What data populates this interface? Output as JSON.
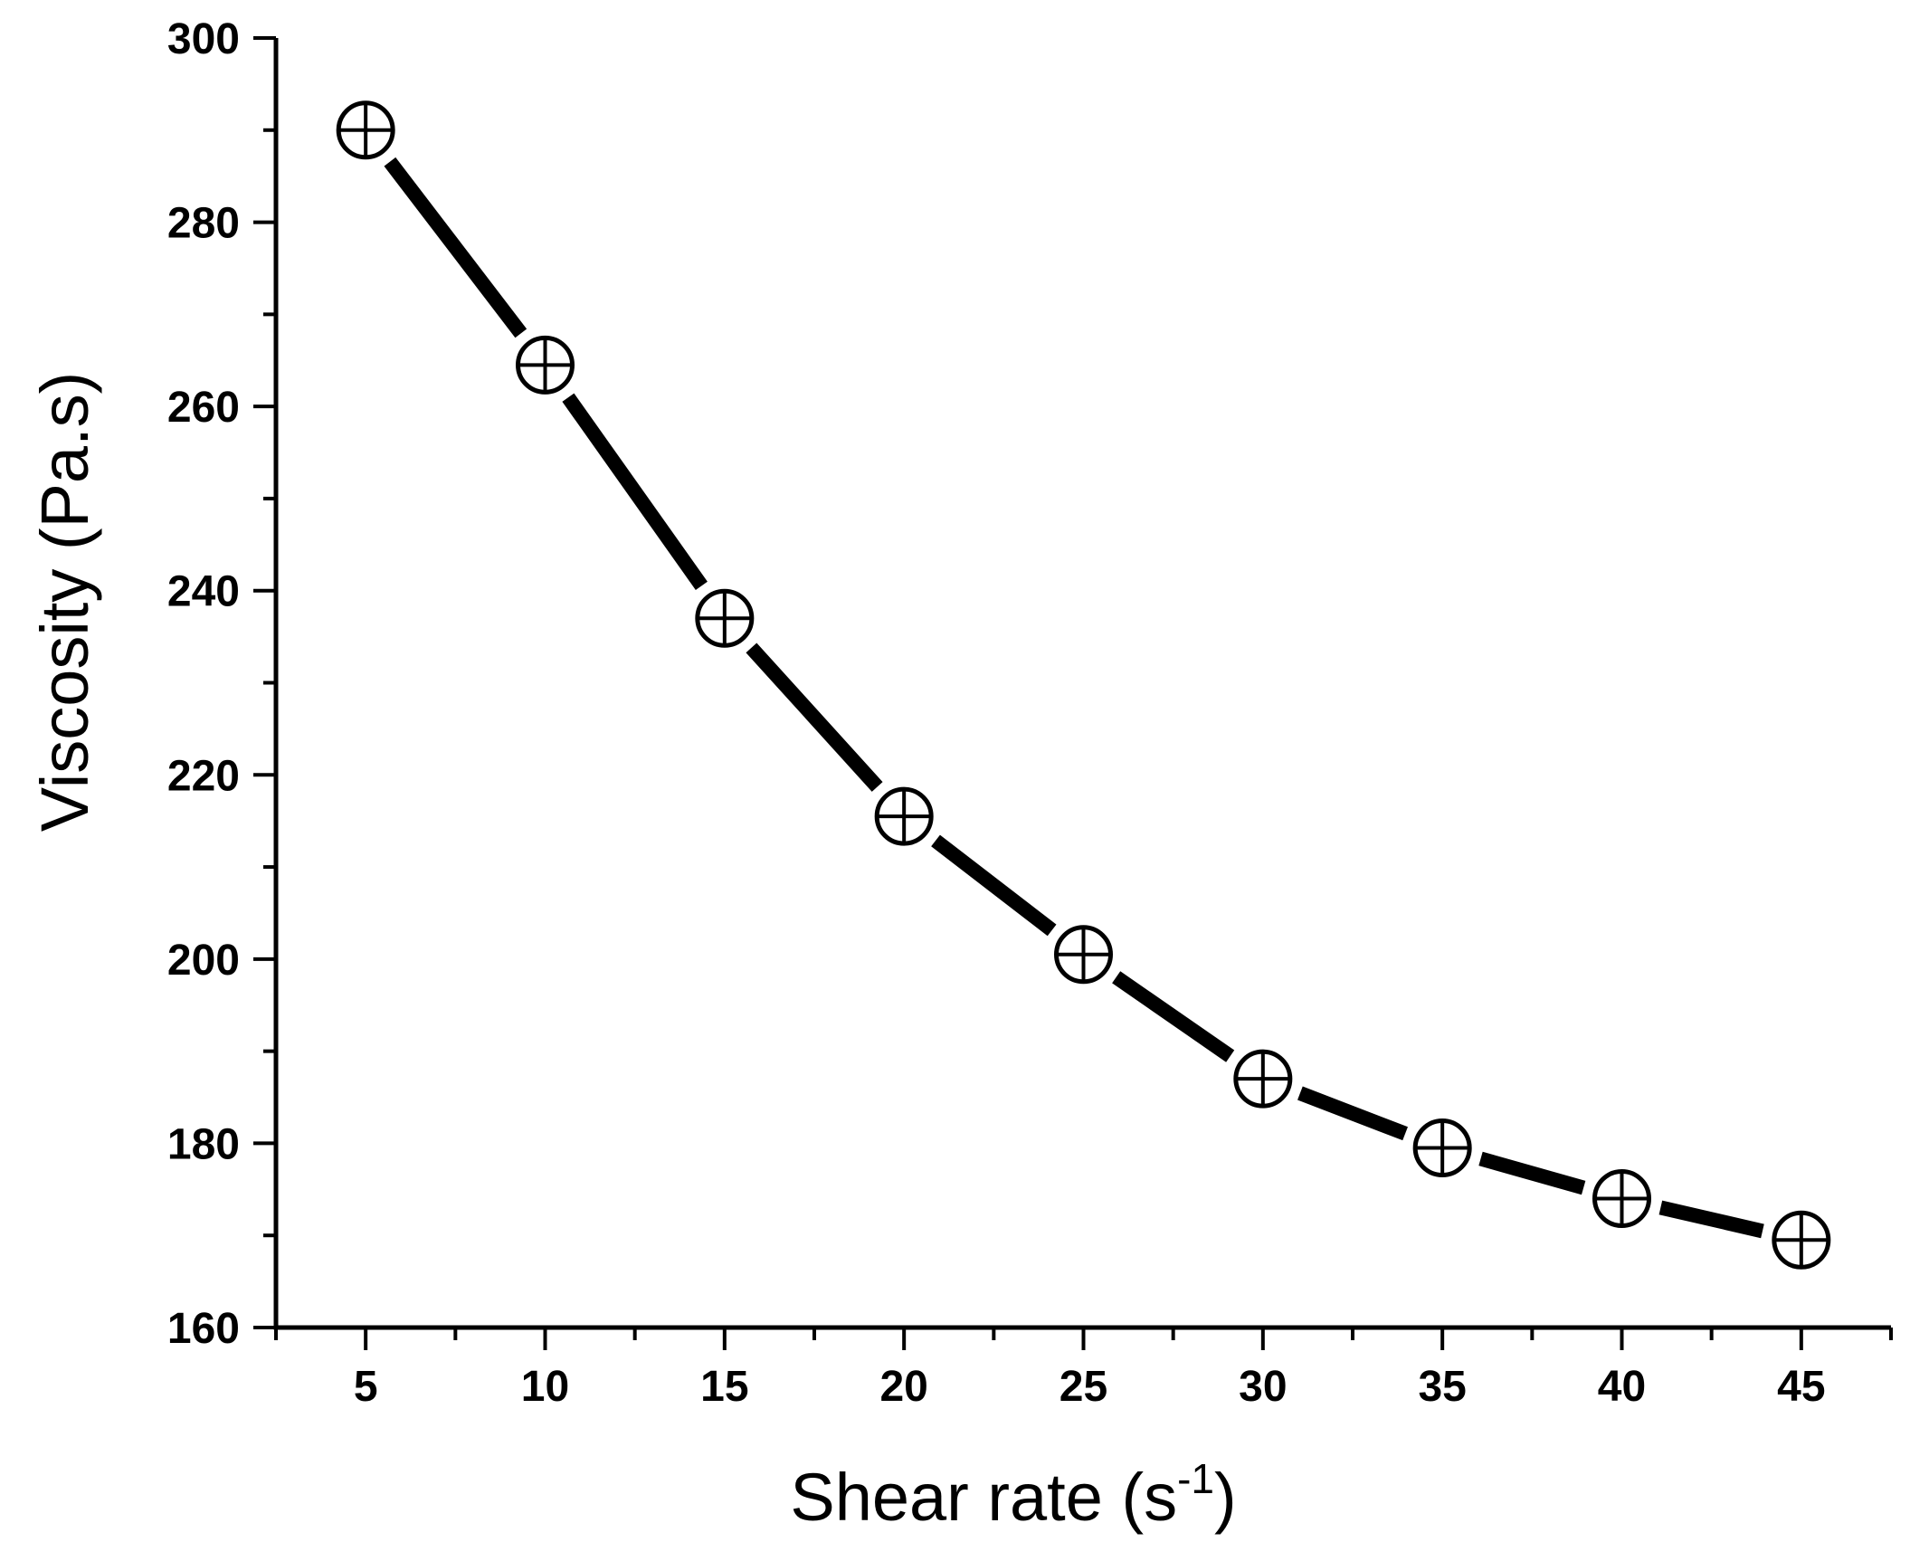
{
  "chart_data": {
    "type": "line",
    "title": "",
    "xlabel": "Shear rate (s",
    "xlabel_superscript": "-1",
    "xlabel_suffix": ")",
    "ylabel": "Viscosity (Pa.s)",
    "xlim": [
      2.5,
      47.5
    ],
    "ylim": [
      160,
      300
    ],
    "x_ticks": [
      5,
      10,
      15,
      20,
      25,
      30,
      35,
      40,
      45
    ],
    "y_ticks": [
      160,
      180,
      200,
      220,
      240,
      260,
      280,
      300
    ],
    "x_minor_step": 2.5,
    "y_minor_step": 10,
    "grid": false,
    "series": [
      {
        "name": "Viscosity",
        "marker": "circle-plus",
        "color": "#000000",
        "x": [
          5,
          10,
          15,
          20,
          25,
          30,
          35,
          40,
          45
        ],
        "y": [
          290,
          264.5,
          237,
          215.5,
          200.5,
          187,
          179.5,
          174,
          169.5
        ]
      }
    ]
  }
}
